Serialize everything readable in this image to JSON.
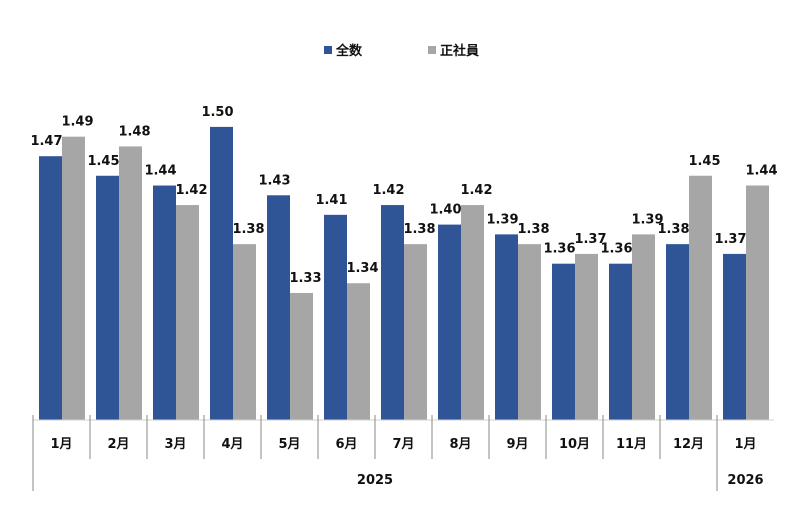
{
  "chart_data": {
    "type": "bar",
    "title": "",
    "xlabel": "",
    "ylabel": "",
    "ylim": [
      1.2,
      1.55
    ],
    "grid": false,
    "legend_position": "top-center",
    "categories": [
      "1月",
      "2月",
      "3月",
      "4月",
      "5月",
      "6月",
      "7月",
      "8月",
      "9月",
      "10月",
      "11月",
      "12月",
      "1月"
    ],
    "year_groups": [
      {
        "label": "2025",
        "count": 12
      },
      {
        "label": "2026",
        "count": 1
      }
    ],
    "series": [
      {
        "name": "全数",
        "color": "#2f5597",
        "values": [
          1.47,
          1.45,
          1.44,
          1.5,
          1.43,
          1.41,
          1.42,
          1.4,
          1.39,
          1.36,
          1.36,
          1.38,
          1.37
        ]
      },
      {
        "name": "正社員",
        "color": "#a6a6a6",
        "values": [
          1.49,
          1.48,
          1.42,
          1.38,
          1.33,
          1.34,
          1.38,
          1.42,
          1.38,
          1.37,
          1.39,
          1.45,
          1.44
        ]
      }
    ]
  }
}
